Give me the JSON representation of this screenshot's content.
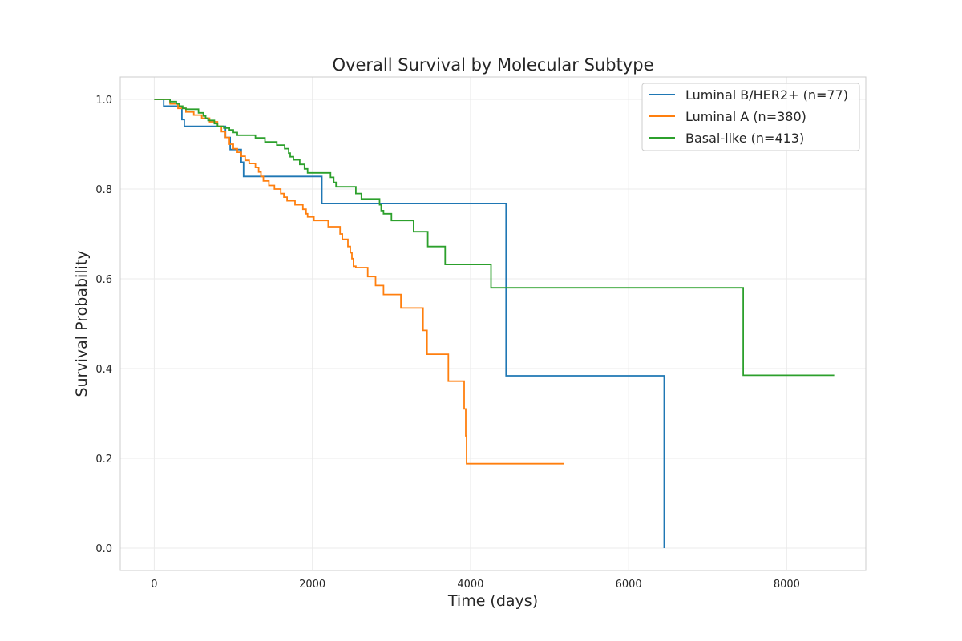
{
  "chart_data": {
    "type": "line",
    "title": "Overall Survival by Molecular Subtype",
    "xlabel": "Time (days)",
    "ylabel": "Survival Probability",
    "xlim": [
      -430,
      9000
    ],
    "ylim": [
      -0.05,
      1.05
    ],
    "xticks": [
      0,
      2000,
      4000,
      6000,
      8000
    ],
    "yticks": [
      0.0,
      0.2,
      0.4,
      0.6,
      0.8,
      1.0
    ],
    "xtick_labels": [
      "0",
      "2000",
      "4000",
      "6000",
      "8000"
    ],
    "ytick_labels": [
      "0.0",
      "0.2",
      "0.4",
      "0.6",
      "0.8",
      "1.0"
    ],
    "grid": true,
    "legend_position": "top-right",
    "step": "post",
    "series": [
      {
        "name": "Luminal B/HER2+ (n=77)",
        "color": "#1f77b4",
        "x": [
          0,
          120,
          350,
          380,
          900,
          960,
          1100,
          1130,
          2120,
          4450,
          6450
        ],
        "y": [
          1.0,
          0.985,
          0.955,
          0.94,
          0.915,
          0.888,
          0.86,
          0.828,
          0.768,
          0.384,
          0.0
        ]
      },
      {
        "name": "Luminal A (n=380)",
        "color": "#ff7f0e",
        "x": [
          0,
          200,
          300,
          400,
          500,
          600,
          700,
          800,
          850,
          900,
          950,
          1000,
          1050,
          1100,
          1150,
          1200,
          1280,
          1320,
          1350,
          1380,
          1450,
          1520,
          1600,
          1640,
          1680,
          1780,
          1880,
          1920,
          1940,
          2020,
          2200,
          2350,
          2380,
          2450,
          2480,
          2500,
          2520,
          2550,
          2700,
          2800,
          2900,
          3120,
          3400,
          3450,
          3720,
          3920,
          3940,
          3950,
          5180
        ],
        "y": [
          1.0,
          0.99,
          0.98,
          0.972,
          0.965,
          0.958,
          0.95,
          0.94,
          0.928,
          0.915,
          0.9,
          0.89,
          0.882,
          0.873,
          0.864,
          0.857,
          0.848,
          0.838,
          0.828,
          0.818,
          0.808,
          0.8,
          0.79,
          0.782,
          0.774,
          0.765,
          0.755,
          0.745,
          0.738,
          0.73,
          0.716,
          0.7,
          0.688,
          0.672,
          0.658,
          0.645,
          0.628,
          0.625,
          0.605,
          0.585,
          0.565,
          0.535,
          0.485,
          0.432,
          0.372,
          0.31,
          0.25,
          0.188,
          0.188
        ]
      },
      {
        "name": "Basal-like (n=413)",
        "color": "#2ca02c",
        "x": [
          0,
          200,
          280,
          320,
          360,
          400,
          560,
          620,
          650,
          680,
          760,
          800,
          880,
          950,
          1000,
          1050,
          1280,
          1400,
          1550,
          1650,
          1700,
          1720,
          1760,
          1840,
          1900,
          1940,
          2230,
          2270,
          2300,
          2550,
          2620,
          2850,
          2870,
          2900,
          3000,
          3280,
          3460,
          3680,
          4260,
          4290,
          7450,
          7480,
          8600
        ],
        "y": [
          1.0,
          0.995,
          0.99,
          0.985,
          0.98,
          0.978,
          0.97,
          0.963,
          0.958,
          0.953,
          0.946,
          0.94,
          0.936,
          0.932,
          0.926,
          0.92,
          0.914,
          0.905,
          0.898,
          0.89,
          0.88,
          0.872,
          0.865,
          0.855,
          0.845,
          0.836,
          0.826,
          0.815,
          0.805,
          0.79,
          0.778,
          0.765,
          0.752,
          0.745,
          0.73,
          0.705,
          0.672,
          0.632,
          0.58,
          0.58,
          0.385,
          0.385,
          0.385
        ]
      }
    ]
  }
}
